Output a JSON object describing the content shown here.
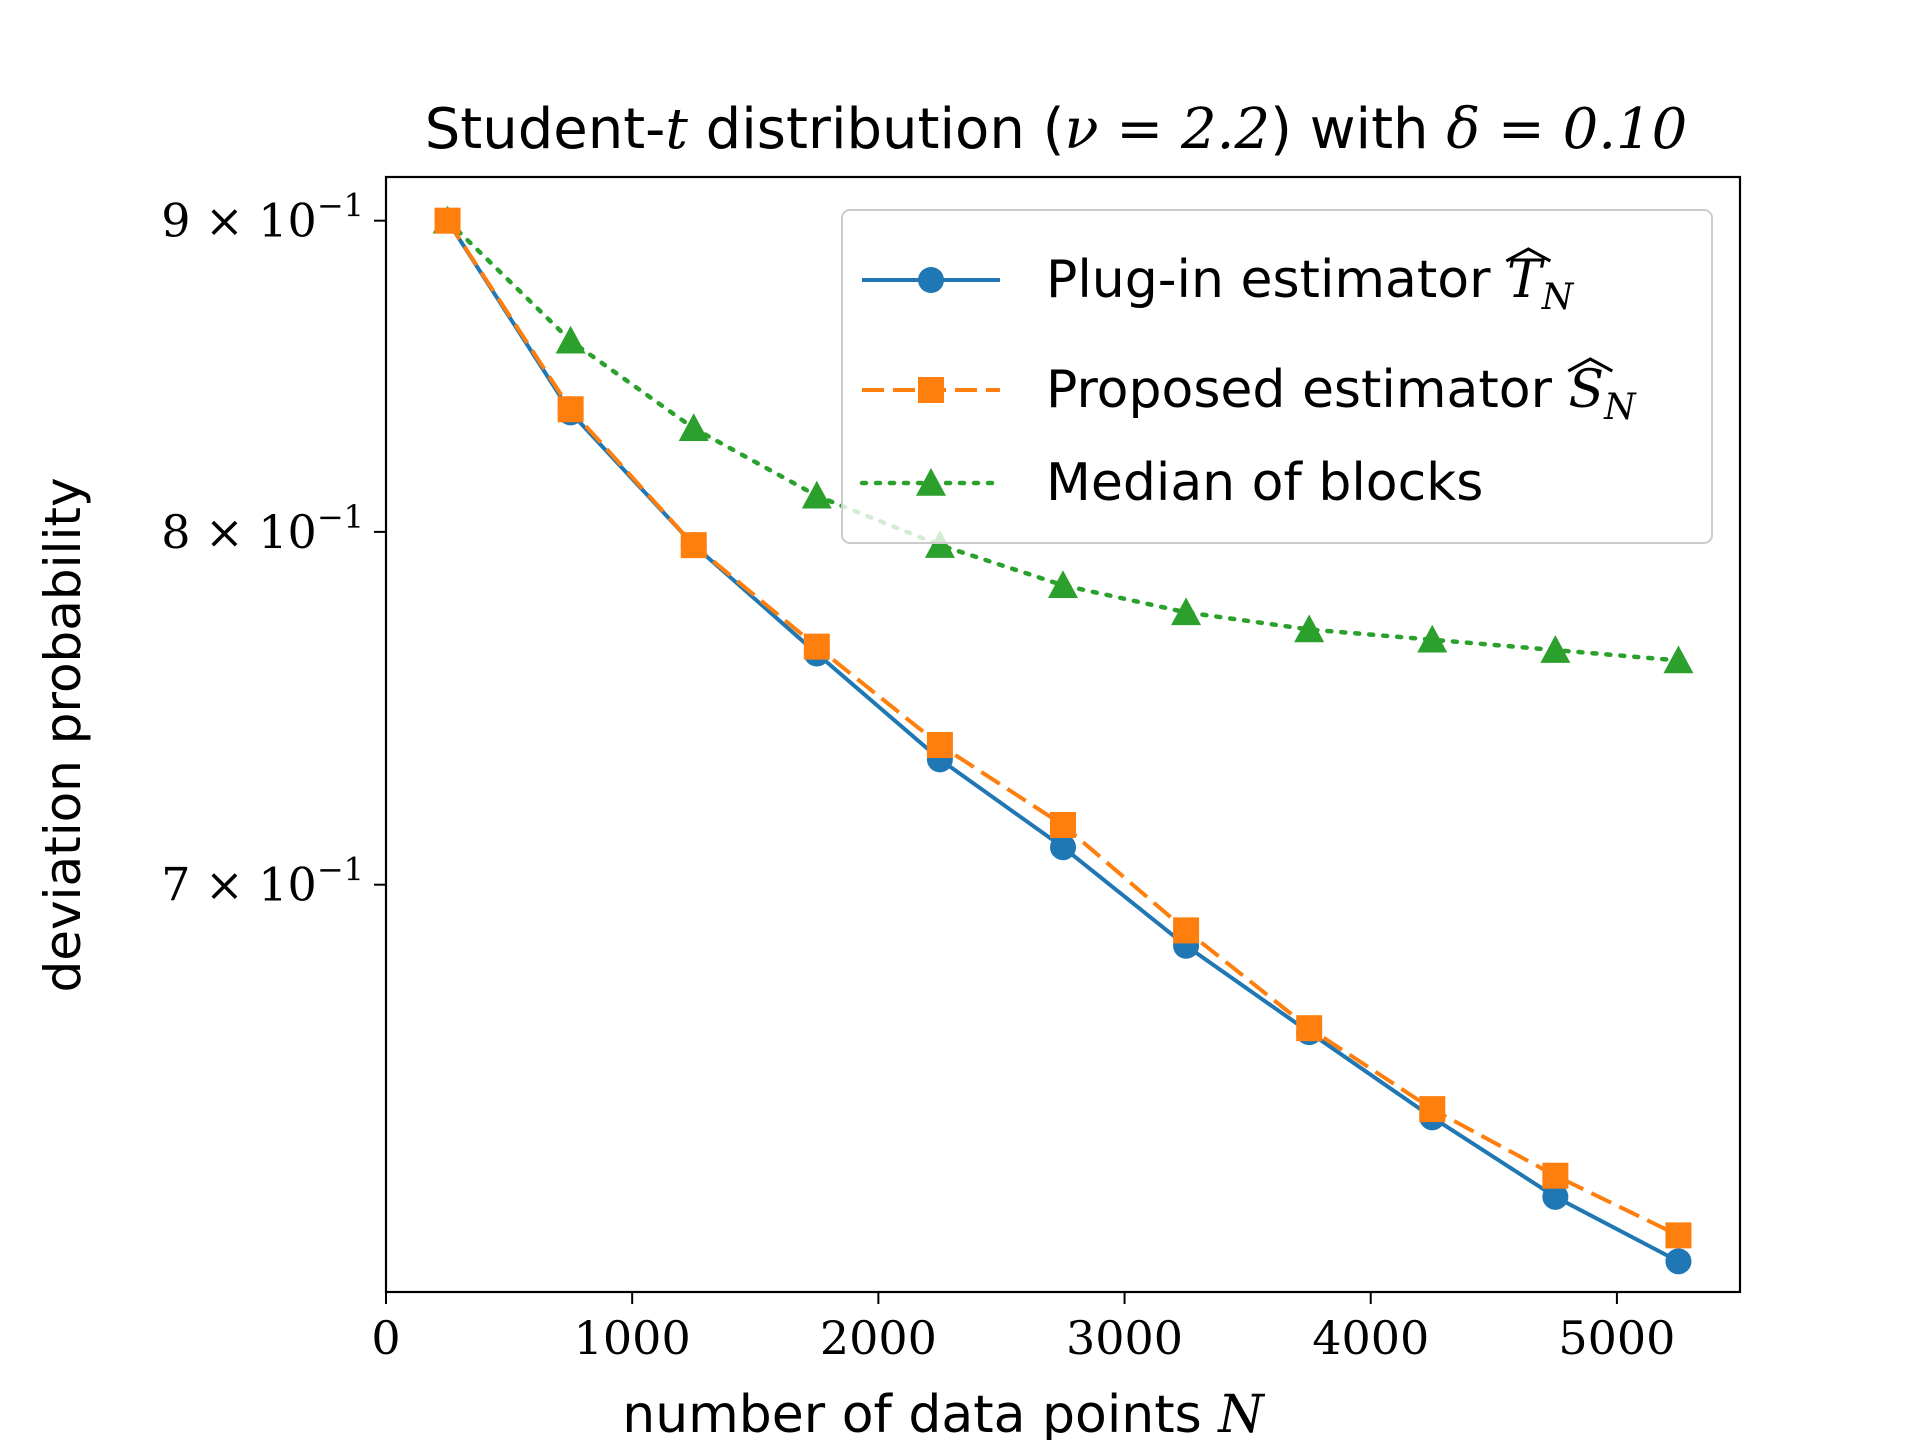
{
  "chart_data": {
    "type": "line",
    "title_parts": {
      "pre": "Student-",
      "t": "t",
      "mid": " distribution (",
      "nu": "ν = 2.2",
      "post": ") with ",
      "delta": "δ = 0.10"
    },
    "xlabel": "number of data points",
    "xlabel_var": "N",
    "ylabel": "deviation probability",
    "x_scale": "linear",
    "y_scale": "log",
    "xlim": [
      0,
      5500
    ],
    "ylim": [
      0.6,
      0.915
    ],
    "x_ticks": [
      0,
      1000,
      2000,
      3000,
      4000,
      5000
    ],
    "x_tick_labels": [
      "0",
      "1000",
      "2000",
      "3000",
      "4000",
      "5000"
    ],
    "y_ticks": [
      0.9,
      0.8,
      0.7
    ],
    "y_tick_labels": [
      {
        "base": "9 × 10",
        "exp": "−1"
      },
      {
        "base": "8 × 10",
        "exp": "−1"
      },
      {
        "base": "7 × 10",
        "exp": "−1"
      }
    ],
    "x": [
      250,
      750,
      1250,
      1750,
      2250,
      2750,
      3250,
      3750,
      4250,
      4750,
      5250
    ],
    "series": [
      {
        "name": "Plug-in estimator",
        "symbol": "T",
        "subscript": "N",
        "color": "#1f77b4",
        "marker": "circle",
        "linestyle": "solid",
        "values": [
          0.9,
          0.837,
          0.796,
          0.764,
          0.734,
          0.71,
          0.684,
          0.662,
          0.641,
          0.622,
          0.607
        ]
      },
      {
        "name": "Proposed estimator",
        "symbol": "S",
        "subscript": "N",
        "color": "#ff7f0e",
        "marker": "square",
        "linestyle": "dashed",
        "values": [
          0.9,
          0.838,
          0.796,
          0.766,
          0.738,
          0.716,
          0.688,
          0.663,
          0.643,
          0.627,
          0.613
        ]
      },
      {
        "name": "Median of blocks",
        "symbol": "",
        "subscript": "",
        "color": "#2ca02c",
        "marker": "triangle",
        "linestyle": "dotted",
        "values": [
          0.9,
          0.86,
          0.832,
          0.811,
          0.796,
          0.784,
          0.776,
          0.771,
          0.768,
          0.765,
          0.762
        ]
      }
    ],
    "legend_position": "top-right",
    "grid": false
  }
}
